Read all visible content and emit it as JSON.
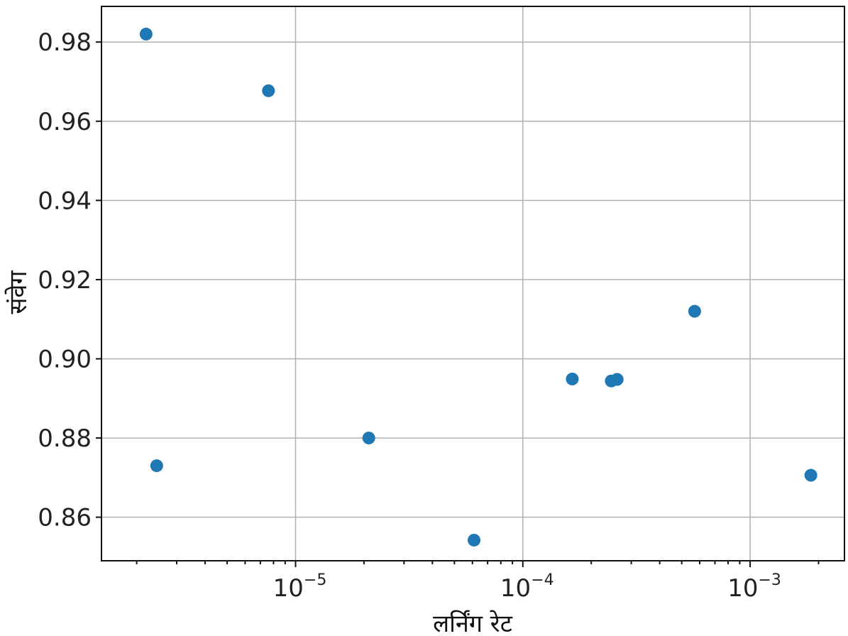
{
  "chart_data": {
    "type": "scatter",
    "xlabel": "लर्निंग रेट",
    "ylabel": "संवेग",
    "x_scale": "log",
    "xlim": [
      1.4e-06,
      0.0026
    ],
    "ylim": [
      0.849,
      0.989
    ],
    "grid": true,
    "color": "#1f77b4",
    "xticks": [
      {
        "value": 1e-05,
        "base": "10",
        "exp": "−5"
      },
      {
        "value": 0.0001,
        "base": "10",
        "exp": "−4"
      },
      {
        "value": 0.001,
        "base": "10",
        "exp": "−3"
      }
    ],
    "yticks": [
      {
        "value": 0.86,
        "label": "0.86"
      },
      {
        "value": 0.88,
        "label": "0.88"
      },
      {
        "value": 0.9,
        "label": "0.90"
      },
      {
        "value": 0.92,
        "label": "0.92"
      },
      {
        "value": 0.94,
        "label": "0.94"
      },
      {
        "value": 0.96,
        "label": "0.96"
      },
      {
        "value": 0.98,
        "label": "0.98"
      }
    ],
    "points": [
      {
        "x": 2.2e-06,
        "y": 0.982
      },
      {
        "x": 2.45e-06,
        "y": 0.873
      },
      {
        "x": 7.6e-06,
        "y": 0.9677
      },
      {
        "x": 2.1e-05,
        "y": 0.88
      },
      {
        "x": 6.1e-05,
        "y": 0.8542
      },
      {
        "x": 0.000165,
        "y": 0.8949
      },
      {
        "x": 0.000245,
        "y": 0.8944
      },
      {
        "x": 0.00026,
        "y": 0.8948
      },
      {
        "x": 0.00057,
        "y": 0.912
      },
      {
        "x": 0.00185,
        "y": 0.8706
      }
    ]
  }
}
